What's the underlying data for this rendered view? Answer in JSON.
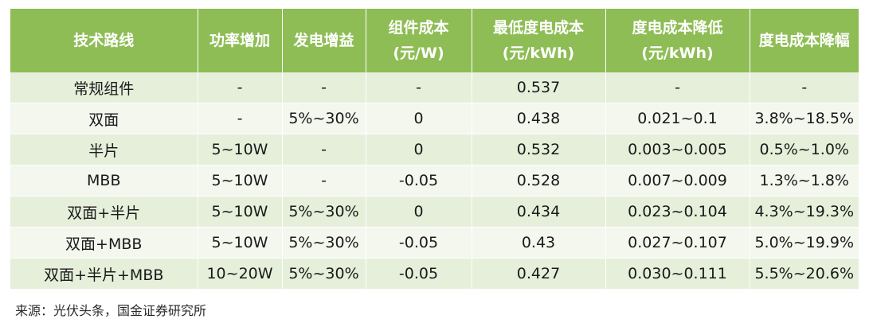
{
  "table": {
    "headers": [
      [
        "技术路线"
      ],
      [
        "功率增加"
      ],
      [
        "发电增益"
      ],
      [
        "组件成本",
        "(元/W)"
      ],
      [
        "最低度电成本",
        "(元/kWh)"
      ],
      [
        "度电成本降低",
        "(元/kWh)"
      ],
      [
        "度电成本降幅"
      ]
    ],
    "rows": [
      [
        "常规组件",
        "-",
        "-",
        "-",
        "0.537",
        "-",
        "-"
      ],
      [
        "双面",
        "-",
        "5%~30%",
        "0",
        "0.438",
        "0.021~0.1",
        "3.8%~18.5%"
      ],
      [
        "半片",
        "5~10W",
        "-",
        "0",
        "0.532",
        "0.003~0.005",
        "0.5%~1.0%"
      ],
      [
        "MBB",
        "5~10W",
        "-",
        "-0.05",
        "0.528",
        "0.007~0.009",
        "1.3%~1.8%"
      ],
      [
        "双面+半片",
        "5~10W",
        "5%~30%",
        "0",
        "0.434",
        "0.023~0.104",
        "4.3%~19.3%"
      ],
      [
        "双面+MBB",
        "5~10W",
        "5%~30%",
        "-0.05",
        "0.43",
        "0.027~0.107",
        "5.0%~19.9%"
      ],
      [
        "双面+半片+MBB",
        "10~20W",
        "5%~30%",
        "-0.05",
        "0.427",
        "0.030~0.111",
        "5.5%~20.6%"
      ]
    ]
  },
  "source": "来源：光伏头条，国金证券研究所",
  "colors": {
    "header_bg": "#8ebd55",
    "row_dark": "#e5efda",
    "row_light": "#f3f7ee"
  }
}
